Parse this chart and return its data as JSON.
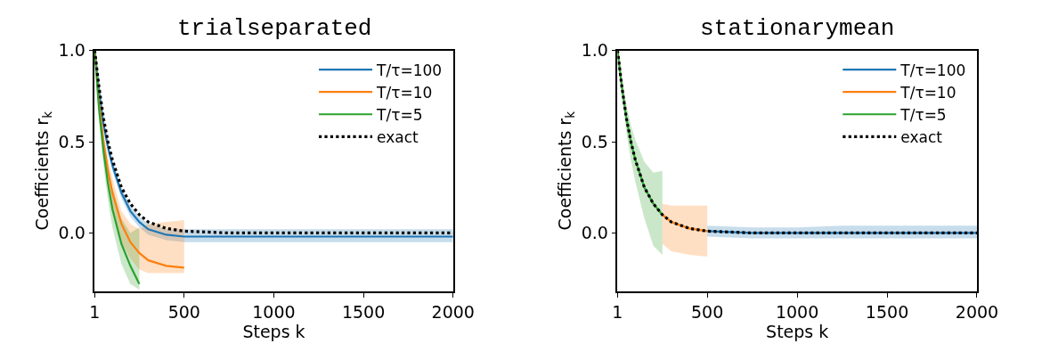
{
  "chart_data": [
    {
      "type": "line",
      "title": "trialseparated",
      "xlabel": "Steps k",
      "ylabel": "Coefficients r$_{k}$",
      "xlim": [
        1,
        2000
      ],
      "xticks": [
        1,
        500,
        1000,
        1500,
        2000
      ],
      "ylim": [
        -0.32,
        1.0
      ],
      "yticks": [
        {
          "value": 0,
          "label": "0.0"
        },
        {
          "value": 0.5,
          "label": "0.5"
        },
        {
          "value": 1,
          "label": "1.0"
        }
      ],
      "legend": "top right",
      "marker": "none",
      "series": [
        {
          "name": "T/τ=100",
          "color": "#1f77b4",
          "x": [
            1,
            25,
            50,
            75,
            100,
            150,
            200,
            250,
            300,
            400,
            500,
            750,
            1000,
            1250,
            1500,
            1750,
            2000
          ],
          "values": [
            1.0,
            0.78,
            0.6,
            0.47,
            0.37,
            0.22,
            0.12,
            0.06,
            0.02,
            -0.01,
            -0.02,
            -0.02,
            -0.02,
            -0.02,
            -0.02,
            -0.02,
            -0.02
          ],
          "lower": [
            0.99,
            0.75,
            0.57,
            0.44,
            0.34,
            0.19,
            0.09,
            0.03,
            -0.01,
            -0.04,
            -0.05,
            -0.05,
            -0.05,
            -0.05,
            -0.05,
            -0.05,
            -0.05
          ],
          "upper": [
            1.0,
            0.8,
            0.63,
            0.5,
            0.4,
            0.25,
            0.15,
            0.09,
            0.05,
            0.02,
            0.02,
            0.02,
            0.02,
            0.02,
            0.02,
            0.02,
            0.02
          ]
        },
        {
          "name": "T/τ=10",
          "color": "#ff7f0e",
          "x": [
            1,
            25,
            50,
            75,
            100,
            150,
            200,
            250,
            300,
            400,
            500
          ],
          "values": [
            1.0,
            0.72,
            0.5,
            0.34,
            0.22,
            0.05,
            -0.05,
            -0.11,
            -0.15,
            -0.18,
            -0.19
          ],
          "lower": [
            0.98,
            0.68,
            0.44,
            0.27,
            0.14,
            -0.05,
            -0.14,
            -0.2,
            -0.22,
            -0.22,
            -0.22
          ],
          "upper": [
            1.0,
            0.76,
            0.56,
            0.41,
            0.3,
            0.12,
            0.05,
            0.02,
            0.05,
            0.06,
            0.07
          ]
        },
        {
          "name": "T/τ=5",
          "color": "#2ca02c",
          "x": [
            1,
            25,
            50,
            75,
            100,
            150,
            200,
            250
          ],
          "values": [
            1.0,
            0.68,
            0.45,
            0.27,
            0.13,
            -0.06,
            -0.18,
            -0.28
          ],
          "lower": [
            0.97,
            0.62,
            0.37,
            0.18,
            0.03,
            -0.17,
            -0.28,
            -0.31
          ],
          "upper": [
            1.0,
            0.74,
            0.53,
            0.37,
            0.25,
            0.08,
            0.0,
            0.03
          ]
        },
        {
          "name": "exact",
          "color": "#000000",
          "line_style": "dotted",
          "x": [
            1,
            25,
            50,
            75,
            100,
            150,
            200,
            250,
            300,
            400,
            500,
            750,
            1000,
            1250,
            1500,
            1750,
            2000
          ],
          "values": [
            1.0,
            0.8,
            0.63,
            0.5,
            0.4,
            0.25,
            0.16,
            0.1,
            0.06,
            0.025,
            0.01,
            0.0,
            0.0,
            0.0,
            0.0,
            0.0,
            0.0
          ]
        }
      ]
    },
    {
      "type": "line",
      "title": "stationarymean",
      "xlabel": "Steps k",
      "ylabel": "Coefficients r$_{k}$",
      "xlim": [
        1,
        2000
      ],
      "xticks": [
        1,
        500,
        1000,
        1500,
        2000
      ],
      "ylim": [
        -0.32,
        1.0
      ],
      "yticks": [
        {
          "value": 0,
          "label": "0.0"
        },
        {
          "value": 0.5,
          "label": "0.5"
        },
        {
          "value": 1,
          "label": "1.0"
        }
      ],
      "legend": "top right",
      "marker": "none",
      "series": [
        {
          "name": "T/τ=100",
          "color": "#1f77b4",
          "x": [
            500,
            750,
            1000,
            1250,
            1500,
            1750,
            2000
          ],
          "values": [
            0.01,
            0.0,
            0.0,
            0.0,
            0.0,
            0.0,
            0.0
          ],
          "lower": [
            -0.02,
            -0.03,
            -0.03,
            -0.03,
            -0.03,
            -0.03,
            -0.03
          ],
          "upper": [
            0.04,
            0.03,
            0.03,
            0.04,
            0.04,
            0.04,
            0.04
          ]
        },
        {
          "name": "T/τ=10",
          "color": "#ff7f0e",
          "x": [
            250,
            300,
            400,
            500
          ],
          "values": [
            0.1,
            0.06,
            0.025,
            0.01
          ],
          "lower": [
            -0.06,
            -0.1,
            -0.12,
            -0.13
          ],
          "upper": [
            0.16,
            0.15,
            0.15,
            0.15
          ]
        },
        {
          "name": "T/τ=5",
          "color": "#2ca02c",
          "x": [
            1,
            25,
            50,
            75,
            100,
            150,
            200,
            250
          ],
          "values": [
            1.0,
            0.8,
            0.63,
            0.5,
            0.4,
            0.25,
            0.16,
            0.1
          ],
          "lower": [
            0.97,
            0.75,
            0.55,
            0.4,
            0.28,
            0.08,
            -0.07,
            -0.12
          ],
          "upper": [
            1.0,
            0.85,
            0.7,
            0.59,
            0.51,
            0.39,
            0.33,
            0.34
          ]
        },
        {
          "name": "exact",
          "color": "#000000",
          "line_style": "dotted",
          "x": [
            1,
            25,
            50,
            75,
            100,
            150,
            200,
            250,
            300,
            400,
            500,
            750,
            1000,
            1250,
            1500,
            1750,
            2000
          ],
          "values": [
            1.0,
            0.8,
            0.63,
            0.5,
            0.4,
            0.25,
            0.16,
            0.1,
            0.06,
            0.025,
            0.01,
            0.0,
            0.0,
            0.0,
            0.0,
            0.0,
            0.0
          ]
        }
      ]
    }
  ]
}
